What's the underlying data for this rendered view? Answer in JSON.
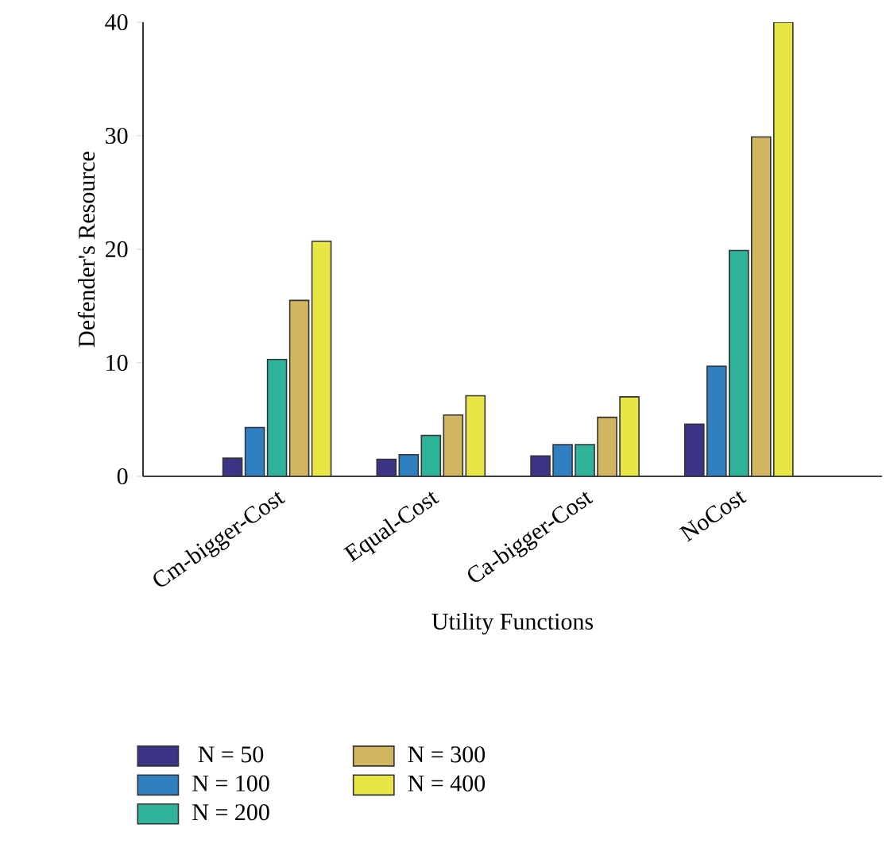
{
  "chart_data": {
    "type": "bar",
    "xlabel": "Utility Functions",
    "ylabel": "Defender's Resource",
    "categories": [
      "Cm-bigger-Cost",
      "Equal-Cost",
      "Ca-bigger-Cost",
      "NoCost"
    ],
    "series": [
      {
        "name": "N = 50",
        "color": "#3b3486",
        "values": [
          1.6,
          1.5,
          1.8,
          4.6
        ]
      },
      {
        "name": "N = 100",
        "color": "#2f7fc1",
        "values": [
          4.3,
          1.9,
          2.8,
          9.7
        ]
      },
      {
        "name": "N = 200",
        "color": "#2fb39a",
        "values": [
          10.3,
          3.6,
          2.8,
          19.9
        ]
      },
      {
        "name": "N = 300",
        "color": "#d2b55f",
        "values": [
          15.5,
          5.4,
          5.2,
          29.9
        ]
      },
      {
        "name": "N = 400",
        "color": "#e8e645",
        "values": [
          20.7,
          7.1,
          7.0,
          40
        ]
      }
    ],
    "ylim": [
      0,
      40
    ],
    "yticks": [
      0,
      10,
      20,
      30,
      40
    ],
    "legend": "bottom",
    "grid": false
  }
}
